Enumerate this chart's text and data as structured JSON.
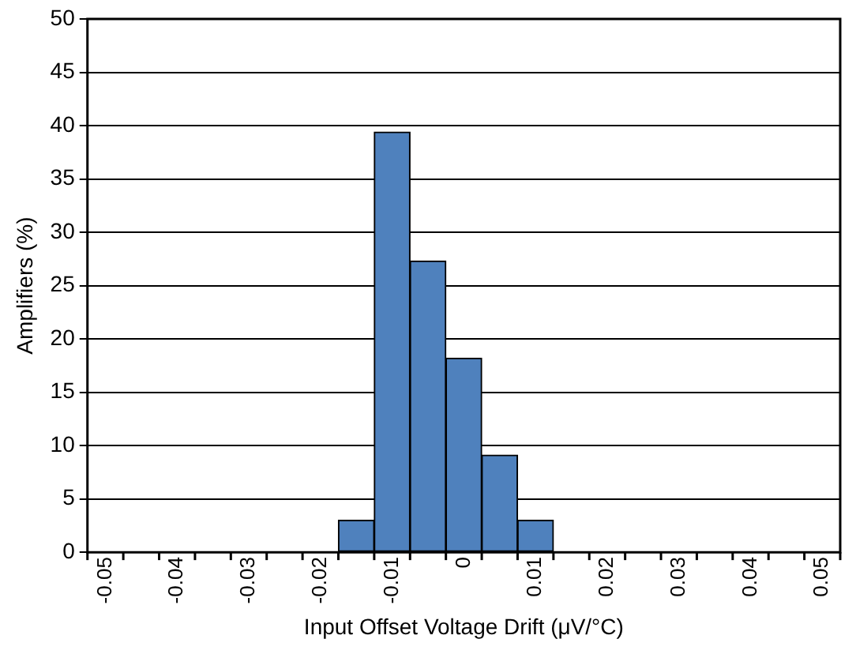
{
  "chart_data": {
    "type": "histogram",
    "xlabel": "Input Offset Voltage Drift (μV/°C)",
    "ylabel": "Amplifiers (%)",
    "bins": [
      -0.0525,
      -0.0475,
      -0.0425,
      -0.0375,
      -0.0325,
      -0.0275,
      -0.0225,
      -0.0175,
      -0.0125,
      -0.0075,
      -0.0025,
      0.0025,
      0.0075,
      0.0125,
      0.0175,
      0.0225,
      0.0275,
      0.0325,
      0.0375,
      0.0425,
      0.0475,
      0.0525
    ],
    "values": [
      0,
      0,
      0,
      0,
      0,
      0,
      0,
      3,
      39.4,
      27.3,
      18.2,
      9.1,
      3,
      0,
      0,
      0,
      0,
      0,
      0,
      0,
      0
    ],
    "color": "#4f81bd",
    "xlim": [
      -0.0525,
      0.0525
    ],
    "xticks": [
      -0.05,
      -0.04,
      -0.03,
      -0.02,
      -0.01,
      0,
      0.01,
      0.02,
      0.03,
      0.04,
      0.05
    ],
    "ylim": [
      0,
      50
    ],
    "yticks": [
      0,
      5,
      10,
      15,
      20,
      25,
      30,
      35,
      40,
      45,
      50
    ],
    "grid": "y"
  }
}
